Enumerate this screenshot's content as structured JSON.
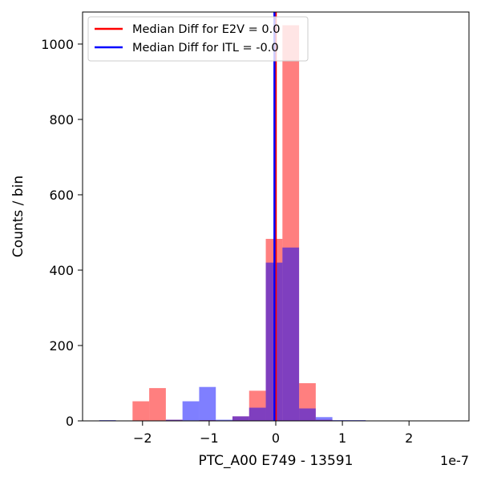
{
  "chart_data": {
    "type": "bar",
    "xlabel": "PTC_A00 E749 - 13591",
    "ylabel": "Counts / bin",
    "x_offset_text": "1e-7",
    "xlim": [
      -2.9,
      2.9
    ],
    "ylim": [
      0,
      1085
    ],
    "x_unit_scale": "1e-7",
    "xticks": [
      -2,
      -1,
      0,
      1,
      2
    ],
    "xtick_labels": [
      "−2",
      "−1",
      "0",
      "1",
      "2"
    ],
    "yticks": [
      0,
      200,
      400,
      600,
      800,
      1000
    ],
    "ytick_labels": [
      "0",
      "200",
      "400",
      "600",
      "800",
      "1000"
    ],
    "grid": false,
    "legend_position": "top-left",
    "bin_width": 0.5,
    "series": [
      {
        "name": "E2V",
        "color": "#ff0000",
        "alpha": 0.5,
        "bins": [
          {
            "x0": -2.15,
            "count": 52
          },
          {
            "x0": -1.9,
            "count": 87
          },
          {
            "x0": -1.65,
            "count": 3
          },
          {
            "x0": -1.15,
            "count": 2
          },
          {
            "x0": -0.65,
            "count": 12
          },
          {
            "x0": -0.4,
            "count": 80
          },
          {
            "x0": -0.15,
            "count": 483
          },
          {
            "x0": 0.1,
            "count": 1050
          },
          {
            "x0": 0.35,
            "count": 100
          },
          {
            "x0": 0.6,
            "count": 3
          }
        ]
      },
      {
        "name": "ITL",
        "color": "#0000ff",
        "alpha": 0.5,
        "bins": [
          {
            "x0": -2.65,
            "count": 2
          },
          {
            "x0": -1.65,
            "count": 3
          },
          {
            "x0": -1.4,
            "count": 52
          },
          {
            "x0": -1.15,
            "count": 90
          },
          {
            "x0": -0.9,
            "count": 3
          },
          {
            "x0": -0.65,
            "count": 12
          },
          {
            "x0": -0.4,
            "count": 35
          },
          {
            "x0": -0.15,
            "count": 420
          },
          {
            "x0": 0.1,
            "count": 460
          },
          {
            "x0": 0.35,
            "count": 33
          },
          {
            "x0": 0.6,
            "count": 10
          },
          {
            "x0": 0.85,
            "count": 2
          },
          {
            "x0": 1.1,
            "count": 2
          }
        ]
      }
    ],
    "median_lines": [
      {
        "label": "Median Diff for E2V = 0.0",
        "color": "#ff0000",
        "x": 0.0
      },
      {
        "label": "Median Diff for ITL = -0.0",
        "color": "#0000ff",
        "x": -0.02
      }
    ]
  }
}
